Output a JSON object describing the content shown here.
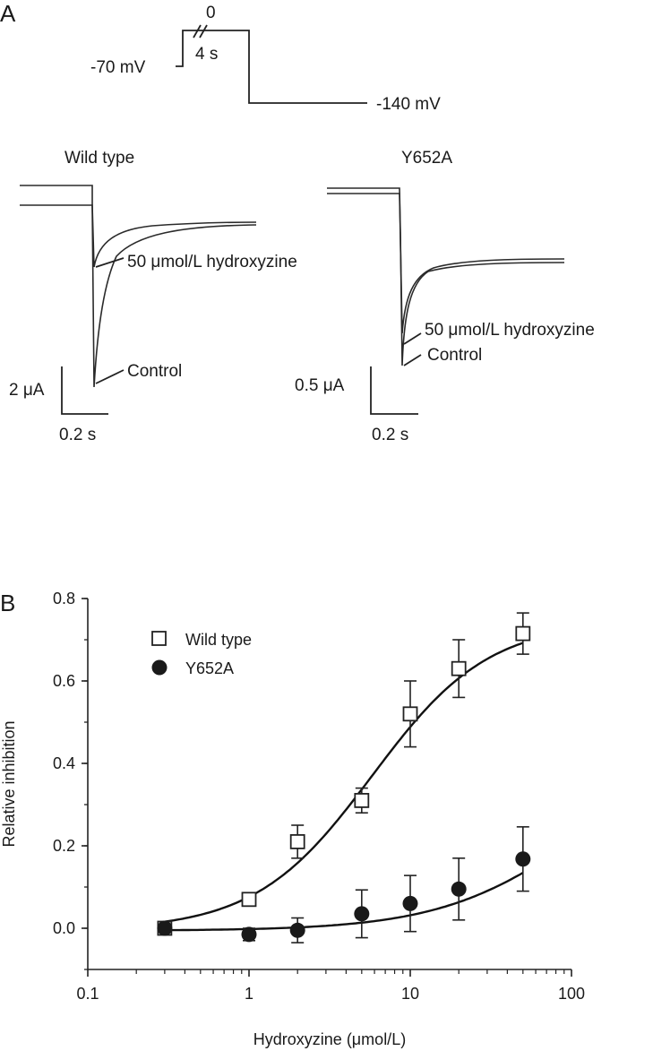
{
  "panel_a": {
    "letter": "A",
    "protocol": {
      "v_hold": "-70 mV",
      "v_step": "0",
      "duration": "4 s",
      "v_test": "-140 mV"
    },
    "wild_type": {
      "title": "Wild type",
      "drug_label": "50 μmol/L hydroxyzine",
      "control_label": "Control",
      "scale_current": "2 μA",
      "scale_time": "0.2 s"
    },
    "mutant": {
      "title": "Y652A",
      "drug_label": "50 μmol/L hydroxyzine",
      "control_label": "Control",
      "scale_current": "0.5 μA",
      "scale_time": "0.2 s"
    }
  },
  "panel_b": {
    "letter": "B",
    "legend": [
      "Wild type",
      "Y652A"
    ]
  },
  "chart_data": {
    "type": "scatter",
    "xlabel": "Hydroxyzine (μmol/L)",
    "ylabel": "Relative inhibition",
    "xscale": "log",
    "xlim": [
      0.1,
      100
    ],
    "ylim": [
      -0.1,
      0.8
    ],
    "xticks": [
      "0.1",
      "1",
      "10",
      "100"
    ],
    "yticks": [
      "0.0",
      "0.2",
      "0.4",
      "0.6",
      "0.8"
    ],
    "legend_position": "top-left",
    "grid": false,
    "series": [
      {
        "name": "Wild type",
        "marker": "open-square",
        "x": [
          0.3,
          1,
          2,
          5,
          10,
          20,
          50
        ],
        "y": [
          0.0,
          0.07,
          0.21,
          0.31,
          0.52,
          0.63,
          0.715
        ],
        "err": [
          0.01,
          0.012,
          0.04,
          0.03,
          0.08,
          0.07,
          0.05
        ],
        "fit": {
          "imax": 0.75,
          "ic50": 5.8,
          "hill": 1.2,
          "offset": -0.005
        }
      },
      {
        "name": "Y652A",
        "marker": "filled-circle",
        "x": [
          0.3,
          1,
          2,
          5,
          10,
          20,
          50
        ],
        "y": [
          0.0,
          -0.015,
          -0.005,
          0.035,
          0.06,
          0.095,
          0.168
        ],
        "err": [
          0.01,
          0.015,
          0.03,
          0.058,
          0.068,
          0.075,
          0.078
        ],
        "fit": {
          "imax": 0.45,
          "ic50": 110,
          "hill": 1.0,
          "offset": -0.006
        }
      }
    ]
  }
}
